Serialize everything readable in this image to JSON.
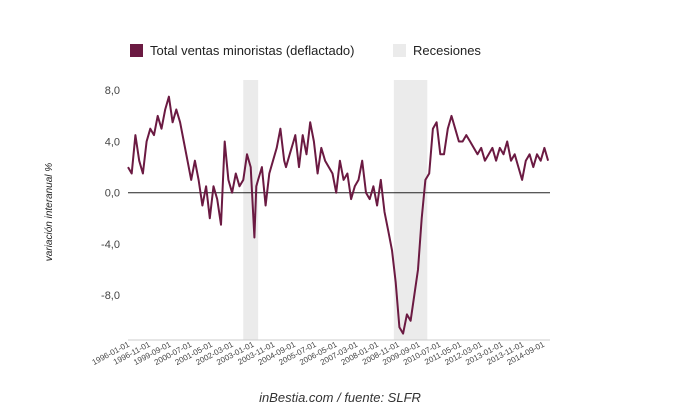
{
  "chart_data": {
    "type": "line",
    "legend": {
      "series_label": "Total ventas minoristas (deflactado)",
      "recession_label": "Recesiones",
      "placement": "top"
    },
    "ylabel": "variación interanual %",
    "source": "inBestia.com / fuente: SLFR",
    "ylim": [
      -11.5,
      8.8
    ],
    "y_ticks": [
      8.0,
      4.0,
      0.0,
      -4.0,
      -8.0
    ],
    "y_tick_labels": [
      "8,0",
      "4,0",
      "0,0",
      "-4,0",
      "-8,0"
    ],
    "x_range": [
      "1996-01-01",
      "2014-12-01"
    ],
    "x_tick_labels": [
      "1996-01-01",
      "1996-11-01",
      "1999-09-01",
      "2000-07-01",
      "2001-05-01",
      "2002-03-01",
      "2003-01-01",
      "2003-11-01",
      "2004-09-01",
      "2005-07-01",
      "2006-05-01",
      "2007-03-01",
      "2008-01-01",
      "2008-11-01",
      "2009-09-01",
      "2010-07-01",
      "2011-05-01",
      "2012-03-01",
      "2013-01-01",
      "2013-11-01",
      "2014-09-01"
    ],
    "recessions": [
      {
        "start": "2001-03-01",
        "end": "2001-11-01"
      },
      {
        "start": "2007-12-01",
        "end": "2009-06-01"
      }
    ],
    "colors": {
      "series": "#6b1a42",
      "recession": "#ebebeb",
      "zero_line": "#222222"
    },
    "series": [
      {
        "name": "Total ventas minoristas (deflactado)",
        "x": [
          "1996-01-01",
          "1996-03-01",
          "1996-05-01",
          "1996-07-01",
          "1996-09-01",
          "1996-11-01",
          "1997-01-01",
          "1997-03-01",
          "1997-05-01",
          "1997-07-01",
          "1997-09-01",
          "1997-11-01",
          "1998-01-01",
          "1998-03-01",
          "1998-05-01",
          "1998-07-01",
          "1998-09-01",
          "1998-11-01",
          "1999-01-01",
          "1999-03-01",
          "1999-05-01",
          "1999-07-01",
          "1999-09-01",
          "1999-11-01",
          "2000-01-01",
          "2000-03-01",
          "2000-05-01",
          "2000-07-01",
          "2000-09-01",
          "2000-11-01",
          "2001-01-01",
          "2001-03-01",
          "2001-05-01",
          "2001-07-01",
          "2001-09-01",
          "2001-10-01",
          "2001-11-01",
          "2002-01-01",
          "2002-03-01",
          "2002-05-01",
          "2002-07-01",
          "2002-09-01",
          "2002-11-01",
          "2003-01-01",
          "2003-02-01",
          "2003-04-01",
          "2003-06-01",
          "2003-07-01",
          "2003-09-01",
          "2003-11-01",
          "2004-01-01",
          "2004-03-01",
          "2004-05-01",
          "2004-07-01",
          "2004-09-01",
          "2004-11-01",
          "2005-01-01",
          "2005-03-01",
          "2005-05-01",
          "2005-07-01",
          "2005-09-01",
          "2005-11-01",
          "2006-01-01",
          "2006-03-01",
          "2006-05-01",
          "2006-07-01",
          "2006-09-01",
          "2006-11-01",
          "2007-01-01",
          "2007-03-01",
          "2007-05-01",
          "2007-07-01",
          "2007-09-01",
          "2007-11-01",
          "2008-01-01",
          "2008-03-01",
          "2008-05-01",
          "2008-07-01",
          "2008-09-01",
          "2008-11-01",
          "2009-01-01",
          "2009-03-01",
          "2009-05-01",
          "2009-07-01",
          "2009-09-01",
          "2009-11-01",
          "2010-01-01",
          "2010-03-01",
          "2010-05-01",
          "2010-07-01",
          "2010-09-01",
          "2010-11-01",
          "2011-01-01",
          "2011-03-01",
          "2011-05-01",
          "2011-07-01",
          "2011-09-01",
          "2011-11-01",
          "2012-01-01",
          "2012-03-01",
          "2012-05-01",
          "2012-07-01",
          "2012-09-01",
          "2012-11-01",
          "2013-01-01",
          "2013-03-01",
          "2013-05-01",
          "2013-07-01",
          "2013-09-01",
          "2013-11-01",
          "2014-01-01",
          "2014-03-01",
          "2014-05-01",
          "2014-07-01",
          "2014-09-01",
          "2014-11-01"
        ],
        "y": [
          2.0,
          1.5,
          4.5,
          2.5,
          1.5,
          4.0,
          5.0,
          4.5,
          6.0,
          5.0,
          6.5,
          7.5,
          5.5,
          6.5,
          5.5,
          4.0,
          2.5,
          1.0,
          2.5,
          1.0,
          -1.0,
          0.5,
          -2.0,
          0.5,
          -0.5,
          -2.5,
          4.0,
          1.0,
          0.0,
          1.5,
          0.5,
          1.0,
          3.0,
          2.0,
          -3.5,
          0.5,
          1.0,
          2.0,
          -1.0,
          1.5,
          2.5,
          3.5,
          5.0,
          2.5,
          2.0,
          3.0,
          4.0,
          4.5,
          2.0,
          4.5,
          3.0,
          5.5,
          4.0,
          1.5,
          3.5,
          2.5,
          2.0,
          1.5,
          0.0,
          2.5,
          1.0,
          1.5,
          -0.5,
          0.5,
          1.0,
          2.5,
          0.0,
          -0.5,
          0.5,
          -1.0,
          1.0,
          -1.5,
          -3.0,
          -4.5,
          -7.0,
          -10.5,
          -11.0,
          -9.5,
          -10.0,
          -8.0,
          -6.0,
          -2.0,
          1.0,
          1.5,
          5.0,
          5.5,
          3.0,
          3.0,
          5.0,
          6.0,
          5.0,
          4.0,
          4.0,
          4.5,
          4.0,
          3.5,
          3.0,
          3.5,
          2.5,
          3.0,
          3.5,
          2.5,
          3.5,
          3.0,
          4.0,
          2.5,
          3.0,
          2.0,
          1.0,
          2.5,
          3.0,
          2.0,
          3.0,
          2.5,
          3.5,
          2.5
        ]
      }
    ]
  }
}
